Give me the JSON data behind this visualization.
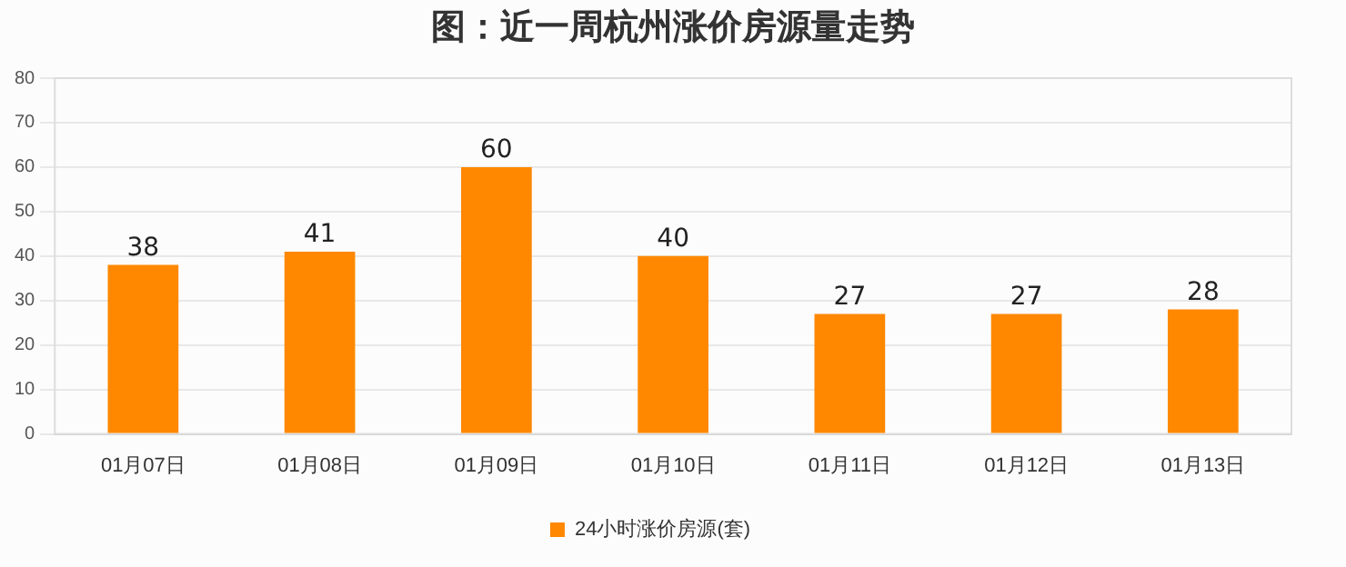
{
  "chart_data": {
    "type": "bar",
    "title": "图：近一周杭州涨价房源量走势",
    "categories": [
      "01月07日",
      "01月08日",
      "01月09日",
      "01月10日",
      "01月11日",
      "01月12日",
      "01月13日"
    ],
    "series": [
      {
        "name": "24小时涨价房源(套)",
        "color": "#ff8800",
        "values": [
          38,
          41,
          60,
          40,
          27,
          27,
          28
        ]
      }
    ],
    "ylim": [
      0,
      80
    ],
    "yticks": [
      0,
      10,
      20,
      30,
      40,
      50,
      60,
      70,
      80
    ],
    "grid": "y",
    "legend": "bottom",
    "data_labels": true
  }
}
